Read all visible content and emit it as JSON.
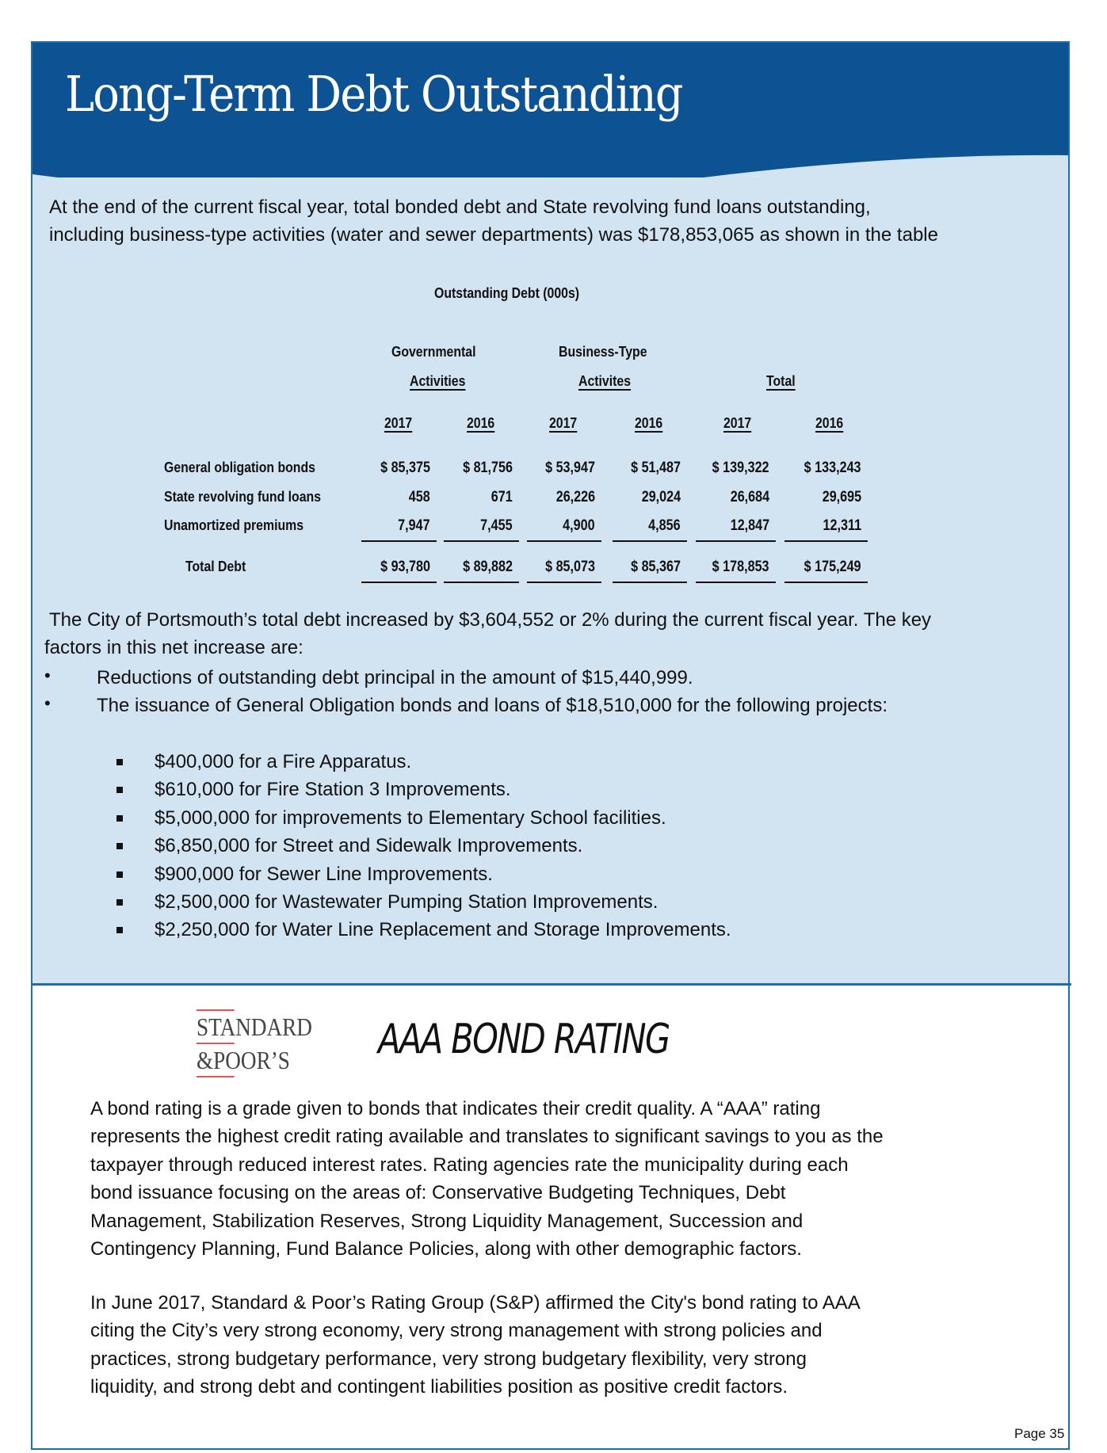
{
  "header": {
    "title": "Long-Term Debt Outstanding"
  },
  "intro": [
    "At the end of the current fiscal year, total bonded debt and State revolving fund loans outstanding,",
    "including business-type activities (water and sewer departments) was $178,853,065 as shown in the table"
  ],
  "table": {
    "title": "Outstanding Debt (000s)",
    "groups": [
      {
        "line1": "Governmental",
        "line2": "Activities"
      },
      {
        "line1": "Business-Type",
        "line2": "Activites"
      },
      {
        "line1": "",
        "line2": "Total"
      }
    ],
    "years": [
      "2017",
      "2016",
      "2017",
      "2016",
      "2017",
      "2016"
    ],
    "rows": [
      {
        "label": "General obligation bonds",
        "values": [
          "$ 85,375",
          "$ 81,756",
          "$ 53,947",
          "$ 51,487",
          "$ 139,322",
          "$ 133,243"
        ]
      },
      {
        "label": "State revolving fund loans",
        "values": [
          "458",
          "671",
          "26,226",
          "29,024",
          "26,684",
          "29,695"
        ]
      },
      {
        "label": "Unamortized premiums",
        "values": [
          "7,947",
          "7,455",
          "4,900",
          "4,856",
          "12,847",
          "12,311"
        ]
      }
    ],
    "total": {
      "label": "Total Debt",
      "values": [
        "$ 93,780",
        "$ 89,882",
        "$ 85,073",
        "$ 85,367",
        "$ 178,853",
        "$ 175,249"
      ]
    }
  },
  "summary": [
    " The City of Portsmouth’s total debt increased by $3,604,552 or 2% during the current fiscal year.  The key",
    "factors in this net increase are:"
  ],
  "bullets": [
    "Reductions of outstanding debt principal in the amount of $15,440,999.",
    "The issuance of General Obligation bonds and loans of $18,510,000 for the following projects:"
  ],
  "projects": [
    "$400,000 for a Fire Apparatus.",
    "$610,000 for Fire Station 3 Improvements.",
    "$5,000,000 for improvements to Elementary School facilities.",
    "$6,850,000 for Street and Sidewalk Improvements.",
    "$900,000 for Sewer Line Improvements.",
    "$2,500,000 for Wastewater Pumping Station Improvements.",
    "$2,250,000 for Water Line Replacement and Storage Improvements."
  ],
  "rating": {
    "logo": [
      "STANDARD",
      "&POOR’S"
    ],
    "title": "AAA BOND RATING",
    "para1": [
      "A bond rating is a grade given to bonds that indicates their credit quality.  A “AAA” rating",
      "represents the highest credit rating available and translates to significant savings to you as the",
      "taxpayer through reduced interest rates.  Rating agencies rate the municipality during each",
      "bond issuance focusing on the areas of: Conservative Budgeting Techniques, Debt",
      "Management, Stabilization Reserves, Strong Liquidity Management, Succession and",
      "Contingency Planning, Fund Balance Policies, along with other demographic factors."
    ],
    "para2": [
      "In June 2017, Standard & Poor’s Rating Group (S&P) affirmed the City's bond rating to AAA",
      "citing the City’s very strong economy, very strong management with strong policies and",
      "practices, strong budgetary performance, very strong budgetary flexibility, very strong",
      "liquidity, and strong debt and contingent liabilities position as positive credit factors."
    ]
  },
  "footer": {
    "page": "Page 35"
  },
  "colors": {
    "header_blue": "#0d5394",
    "panel_light": "#d2e3f2",
    "border": "#1f6ea6"
  }
}
